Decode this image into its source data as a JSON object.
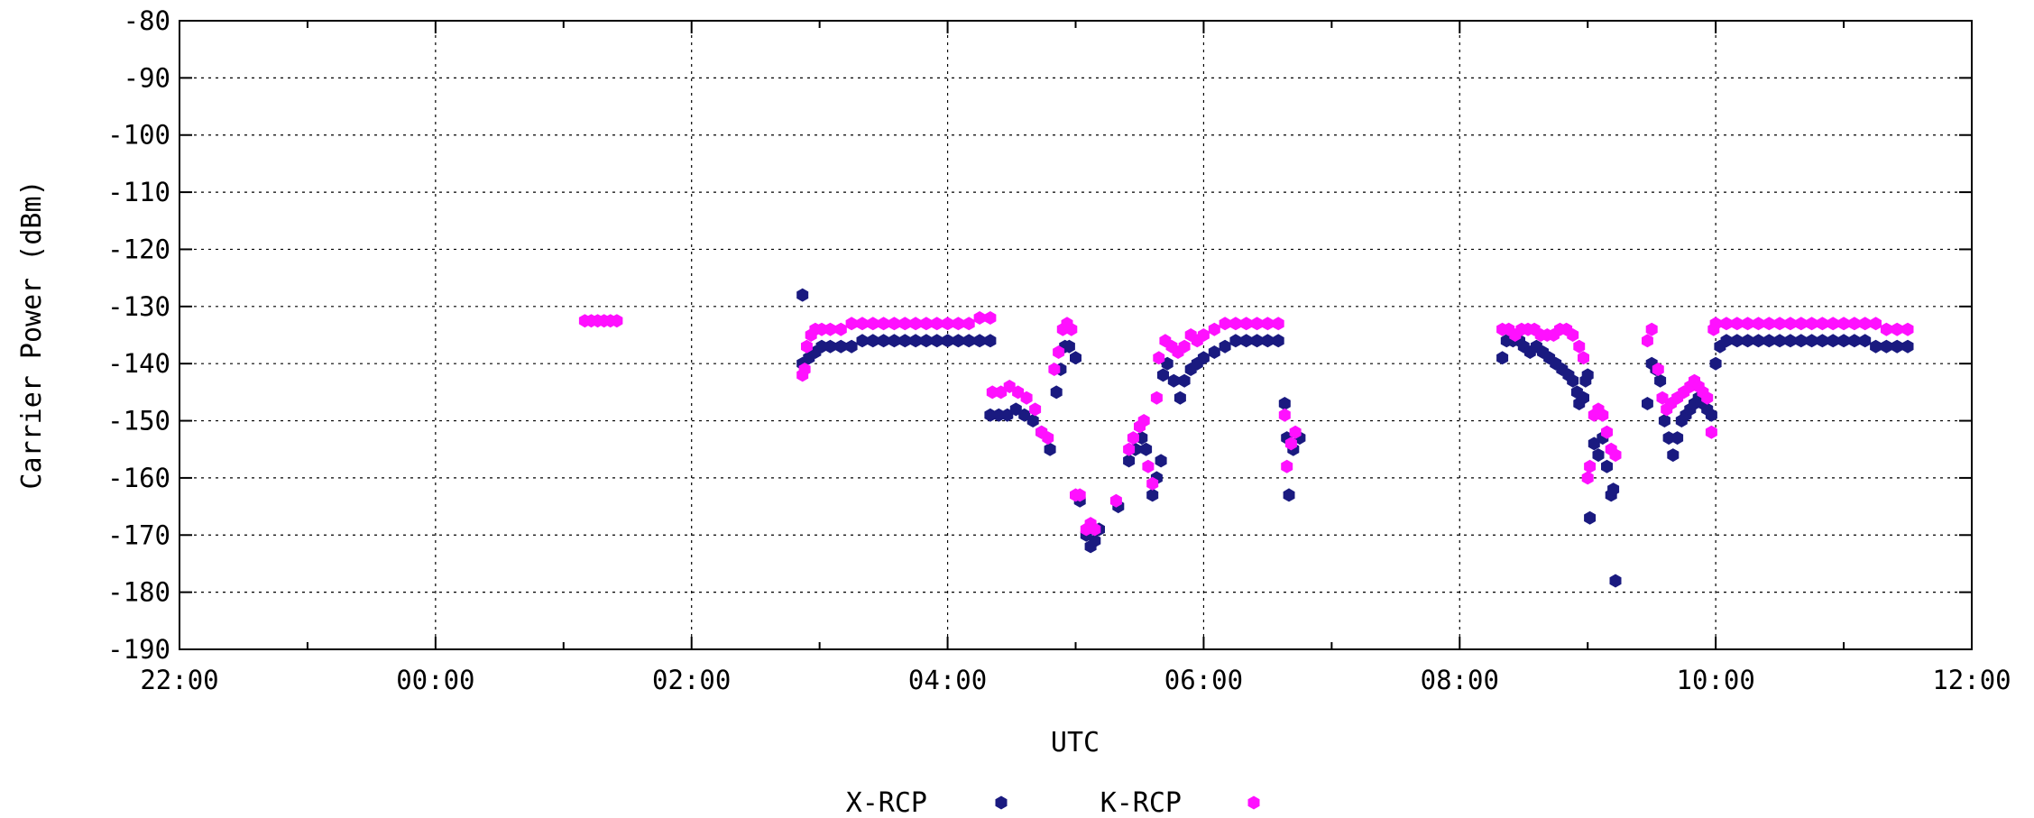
{
  "chart_data": {
    "type": "scatter",
    "xlabel": "UTC",
    "ylabel": "Carrier Power (dBm)",
    "x_ticks": [
      "22:00",
      "00:00",
      "02:00",
      "04:00",
      "06:00",
      "08:00",
      "10:00",
      "12:00"
    ],
    "y_ticks": [
      "-80",
      "-90",
      "-100",
      "-110",
      "-120",
      "-130",
      "-140",
      "-150",
      "-160",
      "-170",
      "-180",
      "-190"
    ],
    "xlim": [
      "22:00",
      "12:00"
    ],
    "ylim": [
      -190,
      -80
    ],
    "grid": true,
    "legend_position": "bottom-center",
    "colors": {
      "X-RCP": "#1a1a80",
      "K-RCP": "#ff10ff"
    },
    "series": [
      {
        "name": "X-RCP",
        "points": [
          [
            "02:52",
            -128
          ],
          [
            "02:52",
            -140
          ],
          [
            "02:55",
            -139
          ],
          [
            "02:58",
            -138
          ],
          [
            "03:01",
            -137
          ],
          [
            "03:05",
            -137
          ],
          [
            "03:10",
            -137
          ],
          [
            "03:15",
            -137
          ],
          [
            "03:20",
            -136
          ],
          [
            "03:25",
            -136
          ],
          [
            "03:30",
            -136
          ],
          [
            "03:35",
            -136
          ],
          [
            "03:40",
            -136
          ],
          [
            "03:45",
            -136
          ],
          [
            "03:50",
            -136
          ],
          [
            "03:55",
            -136
          ],
          [
            "04:00",
            -136
          ],
          [
            "04:05",
            -136
          ],
          [
            "04:10",
            -136
          ],
          [
            "04:15",
            -136
          ],
          [
            "04:20",
            -136
          ],
          [
            "04:20",
            -149
          ],
          [
            "04:24",
            -149
          ],
          [
            "04:28",
            -149
          ],
          [
            "04:32",
            -148
          ],
          [
            "04:36",
            -149
          ],
          [
            "04:40",
            -150
          ],
          [
            "04:44",
            -152
          ],
          [
            "04:48",
            -155
          ],
          [
            "04:51",
            -145
          ],
          [
            "04:53",
            -141
          ],
          [
            "04:55",
            -137
          ],
          [
            "04:57",
            -137
          ],
          [
            "05:00",
            -139
          ],
          [
            "05:02",
            -164
          ],
          [
            "05:05",
            -170
          ],
          [
            "05:07",
            -172
          ],
          [
            "05:09",
            -171
          ],
          [
            "05:11",
            -169
          ],
          [
            "05:20",
            -165
          ],
          [
            "05:25",
            -157
          ],
          [
            "05:28",
            -155
          ],
          [
            "05:31",
            -153
          ],
          [
            "05:33",
            -155
          ],
          [
            "05:36",
            -163
          ],
          [
            "05:38",
            -160
          ],
          [
            "05:40",
            -157
          ],
          [
            "05:41",
            -142
          ],
          [
            "05:43",
            -140
          ],
          [
            "05:46",
            -143
          ],
          [
            "05:49",
            -146
          ],
          [
            "05:51",
            -143
          ],
          [
            "05:54",
            -141
          ],
          [
            "05:57",
            -140
          ],
          [
            "06:00",
            -139
          ],
          [
            "06:05",
            -138
          ],
          [
            "06:10",
            -137
          ],
          [
            "06:15",
            -136
          ],
          [
            "06:20",
            -136
          ],
          [
            "06:25",
            -136
          ],
          [
            "06:30",
            -136
          ],
          [
            "06:35",
            -136
          ],
          [
            "06:38",
            -147
          ],
          [
            "06:39",
            -153
          ],
          [
            "06:40",
            -163
          ],
          [
            "06:42",
            -155
          ],
          [
            "06:45",
            -153
          ],
          [
            "08:20",
            -139
          ],
          [
            "08:22",
            -136
          ],
          [
            "08:25",
            -136
          ],
          [
            "08:28",
            -136
          ],
          [
            "08:30",
            -137
          ],
          [
            "08:33",
            -138
          ],
          [
            "08:36",
            -137
          ],
          [
            "08:39",
            -138
          ],
          [
            "08:42",
            -139
          ],
          [
            "08:45",
            -140
          ],
          [
            "08:48",
            -141
          ],
          [
            "08:51",
            -142
          ],
          [
            "08:53",
            -143
          ],
          [
            "08:55",
            -145
          ],
          [
            "08:56",
            -147
          ],
          [
            "08:58",
            -146
          ],
          [
            "08:59",
            -143
          ],
          [
            "09:00",
            -142
          ],
          [
            "09:01",
            -167
          ],
          [
            "09:03",
            -154
          ],
          [
            "09:05",
            -156
          ],
          [
            "09:07",
            -153
          ],
          [
            "09:09",
            -158
          ],
          [
            "09:11",
            -163
          ],
          [
            "09:12",
            -162
          ],
          [
            "09:13",
            -178
          ],
          [
            "09:28",
            -147
          ],
          [
            "09:30",
            -140
          ],
          [
            "09:32",
            -141
          ],
          [
            "09:34",
            -143
          ],
          [
            "09:36",
            -150
          ],
          [
            "09:38",
            -153
          ],
          [
            "09:40",
            -156
          ],
          [
            "09:42",
            -153
          ],
          [
            "09:44",
            -150
          ],
          [
            "09:46",
            -149
          ],
          [
            "09:48",
            -148
          ],
          [
            "09:50",
            -147
          ],
          [
            "09:52",
            -146
          ],
          [
            "09:54",
            -147
          ],
          [
            "09:56",
            -148
          ],
          [
            "09:58",
            -149
          ],
          [
            "10:00",
            -140
          ],
          [
            "10:02",
            -137
          ],
          [
            "10:05",
            -136
          ],
          [
            "10:10",
            -136
          ],
          [
            "10:15",
            -136
          ],
          [
            "10:20",
            -136
          ],
          [
            "10:25",
            -136
          ],
          [
            "10:30",
            -136
          ],
          [
            "10:35",
            -136
          ],
          [
            "10:40",
            -136
          ],
          [
            "10:45",
            -136
          ],
          [
            "10:50",
            -136
          ],
          [
            "10:55",
            -136
          ],
          [
            "11:00",
            -136
          ],
          [
            "11:05",
            -136
          ],
          [
            "11:10",
            -136
          ],
          [
            "11:15",
            -137
          ],
          [
            "11:20",
            -137
          ],
          [
            "11:25",
            -137
          ],
          [
            "11:30",
            -137
          ]
        ]
      },
      {
        "name": "K-RCP",
        "points": [
          [
            "01:10",
            -132.5
          ],
          [
            "01:13",
            -132.5
          ],
          [
            "01:16",
            -132.5
          ],
          [
            "01:19",
            -132.5
          ],
          [
            "01:22",
            -132.5
          ],
          [
            "01:25",
            -132.5
          ],
          [
            "02:52",
            -142
          ],
          [
            "02:53",
            -141
          ],
          [
            "02:54",
            -137
          ],
          [
            "02:56",
            -135
          ],
          [
            "02:58",
            -134
          ],
          [
            "03:01",
            -134
          ],
          [
            "03:05",
            -134
          ],
          [
            "03:10",
            -134
          ],
          [
            "03:15",
            -133
          ],
          [
            "03:20",
            -133
          ],
          [
            "03:25",
            -133
          ],
          [
            "03:30",
            -133
          ],
          [
            "03:35",
            -133
          ],
          [
            "03:40",
            -133
          ],
          [
            "03:45",
            -133
          ],
          [
            "03:50",
            -133
          ],
          [
            "03:55",
            -133
          ],
          [
            "04:00",
            -133
          ],
          [
            "04:05",
            -133
          ],
          [
            "04:10",
            -133
          ],
          [
            "04:15",
            -132
          ],
          [
            "04:20",
            -132
          ],
          [
            "04:21",
            -145
          ],
          [
            "04:25",
            -145
          ],
          [
            "04:29",
            -144
          ],
          [
            "04:33",
            -145
          ],
          [
            "04:37",
            -146
          ],
          [
            "04:41",
            -148
          ],
          [
            "04:44",
            -152
          ],
          [
            "04:47",
            -153
          ],
          [
            "04:50",
            -141
          ],
          [
            "04:52",
            -138
          ],
          [
            "04:54",
            -134
          ],
          [
            "04:56",
            -133
          ],
          [
            "04:58",
            -134
          ],
          [
            "05:00",
            -163
          ],
          [
            "05:02",
            -163
          ],
          [
            "05:05",
            -169
          ],
          [
            "05:07",
            -168
          ],
          [
            "05:09",
            -169
          ],
          [
            "05:19",
            -164
          ],
          [
            "05:25",
            -155
          ],
          [
            "05:27",
            -153
          ],
          [
            "05:30",
            -151
          ],
          [
            "05:32",
            -150
          ],
          [
            "05:34",
            -158
          ],
          [
            "05:36",
            -161
          ],
          [
            "05:38",
            -146
          ],
          [
            "05:39",
            -139
          ],
          [
            "05:42",
            -136
          ],
          [
            "05:45",
            -137
          ],
          [
            "05:48",
            -138
          ],
          [
            "05:51",
            -137
          ],
          [
            "05:54",
            -135
          ],
          [
            "05:57",
            -136
          ],
          [
            "06:00",
            -135
          ],
          [
            "06:05",
            -134
          ],
          [
            "06:10",
            -133
          ],
          [
            "06:15",
            -133
          ],
          [
            "06:20",
            -133
          ],
          [
            "06:25",
            -133
          ],
          [
            "06:30",
            -133
          ],
          [
            "06:35",
            -133
          ],
          [
            "06:38",
            -149
          ],
          [
            "06:39",
            -158
          ],
          [
            "06:41",
            -154
          ],
          [
            "06:43",
            -152
          ],
          [
            "08:20",
            -134
          ],
          [
            "08:23",
            -134
          ],
          [
            "08:26",
            -135
          ],
          [
            "08:29",
            -134
          ],
          [
            "08:32",
            -134
          ],
          [
            "08:35",
            -134
          ],
          [
            "08:38",
            -135
          ],
          [
            "08:41",
            -135
          ],
          [
            "08:44",
            -135
          ],
          [
            "08:47",
            -134
          ],
          [
            "08:50",
            -134
          ],
          [
            "08:53",
            -135
          ],
          [
            "08:56",
            -137
          ],
          [
            "08:58",
            -139
          ],
          [
            "09:00",
            -160
          ],
          [
            "09:01",
            -158
          ],
          [
            "09:03",
            -149
          ],
          [
            "09:05",
            -148
          ],
          [
            "09:07",
            -149
          ],
          [
            "09:09",
            -152
          ],
          [
            "09:11",
            -155
          ],
          [
            "09:13",
            -156
          ],
          [
            "09:28",
            -136
          ],
          [
            "09:30",
            -134
          ],
          [
            "09:33",
            -141
          ],
          [
            "09:35",
            -146
          ],
          [
            "09:37",
            -148
          ],
          [
            "09:39",
            -147
          ],
          [
            "09:42",
            -146
          ],
          [
            "09:45",
            -145
          ],
          [
            "09:48",
            -144
          ],
          [
            "09:50",
            -143
          ],
          [
            "09:52",
            -144
          ],
          [
            "09:54",
            -145
          ],
          [
            "09:56",
            -146
          ],
          [
            "09:58",
            -152
          ],
          [
            "09:59",
            -134
          ],
          [
            "10:00",
            -133
          ],
          [
            "10:05",
            -133
          ],
          [
            "10:10",
            -133
          ],
          [
            "10:15",
            -133
          ],
          [
            "10:20",
            -133
          ],
          [
            "10:25",
            -133
          ],
          [
            "10:30",
            -133
          ],
          [
            "10:35",
            -133
          ],
          [
            "10:40",
            -133
          ],
          [
            "10:45",
            -133
          ],
          [
            "10:50",
            -133
          ],
          [
            "10:55",
            -133
          ],
          [
            "11:00",
            -133
          ],
          [
            "11:05",
            -133
          ],
          [
            "11:10",
            -133
          ],
          [
            "11:15",
            -133
          ],
          [
            "11:20",
            -134
          ],
          [
            "11:25",
            -134
          ],
          [
            "11:30",
            -134
          ]
        ]
      }
    ]
  }
}
